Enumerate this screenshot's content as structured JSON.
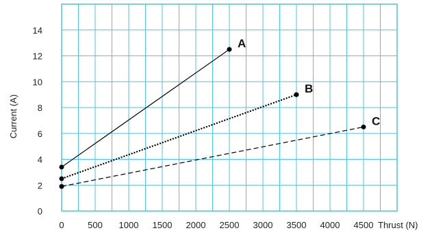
{
  "chart_data": {
    "type": "line",
    "title": "",
    "xlabel": "Thrust (N)",
    "ylabel": "Current (A)",
    "xlim": [
      0,
      5000
    ],
    "ylim": [
      0,
      16
    ],
    "xticks": [
      0,
      500,
      1000,
      1500,
      2000,
      2500,
      3000,
      3500,
      4000,
      4500
    ],
    "yticks": [
      0,
      2,
      4,
      6,
      8,
      10,
      12,
      14
    ],
    "xtick_labels": [
      "0",
      "500",
      "1000",
      "1500",
      "2000",
      "2500",
      "3000",
      "3500",
      "4000",
      "4500"
    ],
    "ytick_labels": [
      "0",
      "2",
      "4",
      "6",
      "8",
      "10",
      "12",
      "14"
    ],
    "grid": true,
    "colors": {
      "grid": "#4fc3df",
      "frame": "#4fc3df",
      "line": "#000000"
    },
    "series": [
      {
        "name": "A",
        "style": "solid",
        "points": [
          [
            0,
            3.4
          ],
          [
            2500,
            12.5
          ]
        ]
      },
      {
        "name": "B",
        "style": "dotted",
        "points": [
          [
            0,
            2.5
          ],
          [
            3500,
            9.0
          ]
        ]
      },
      {
        "name": "C",
        "style": "dashed",
        "points": [
          [
            0,
            1.9
          ],
          [
            4500,
            6.5
          ]
        ]
      }
    ]
  }
}
